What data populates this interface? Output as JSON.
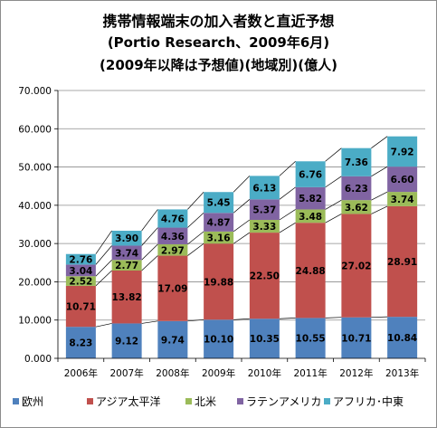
{
  "title_lines": [
    "携帯情報端末の加入者数と直近予想",
    "(Portio Research、2009年6月)",
    "(2009年以降は予想値)(地域別)(億人)"
  ],
  "chart_data": {
    "type": "bar",
    "stacked": true,
    "title": "携帯情報端末の加入者数と直近予想 (Portio Research、2009年6月) (2009年以降は予想値)(地域別)(億人)",
    "categories": [
      "2006年",
      "2007年",
      "2008年",
      "2009年",
      "2010年",
      "2011年",
      "2012年",
      "2013年"
    ],
    "series": [
      {
        "name": "欧州",
        "color": "#4f81bd",
        "values": [
          8.23,
          9.12,
          9.74,
          10.1,
          10.35,
          10.55,
          10.71,
          10.84
        ],
        "labels": [
          "8.23",
          "9.12",
          "9.74",
          "10.10",
          "10.35",
          "10.55",
          "10.71",
          "10.84"
        ]
      },
      {
        "name": "アジア太平洋",
        "color": "#c0504d",
        "values": [
          10.71,
          13.82,
          17.09,
          19.88,
          22.5,
          24.88,
          27.02,
          28.91
        ],
        "labels": [
          "10.71",
          "13.82",
          "17.09",
          "19.88",
          "22.50",
          "24.88",
          "27.02",
          "28.91"
        ]
      },
      {
        "name": "北米",
        "color": "#9bbb59",
        "values": [
          2.52,
          2.77,
          2.97,
          3.16,
          3.33,
          3.48,
          3.62,
          3.74
        ],
        "labels": [
          "2.52",
          "2.77",
          "2.97",
          "3.16",
          "3.33",
          "3.48",
          "3.62",
          "3.74"
        ]
      },
      {
        "name": "ラテンアメリカ",
        "color": "#8064a2",
        "values": [
          3.04,
          3.74,
          4.36,
          4.87,
          5.37,
          5.82,
          6.23,
          6.6
        ],
        "labels": [
          "3.04",
          "3.74",
          "4.36",
          "4.87",
          "5.37",
          "5.82",
          "6.23",
          "6.60"
        ]
      },
      {
        "name": "アフリカ･中東",
        "color": "#4bacc6",
        "values": [
          2.76,
          3.9,
          4.76,
          5.45,
          6.13,
          6.76,
          7.36,
          7.92
        ],
        "labels": [
          "2.76",
          "3.90",
          "4.76",
          "5.45",
          "6.13",
          "6.76",
          "7.36",
          "7.92"
        ]
      }
    ],
    "y_ticks": [
      "0.000",
      "10.000",
      "20.000",
      "30.000",
      "40.000",
      "50.000",
      "60.000",
      "70.000"
    ],
    "ylim": [
      0,
      70
    ],
    "grid": true,
    "legend": "bottom"
  }
}
